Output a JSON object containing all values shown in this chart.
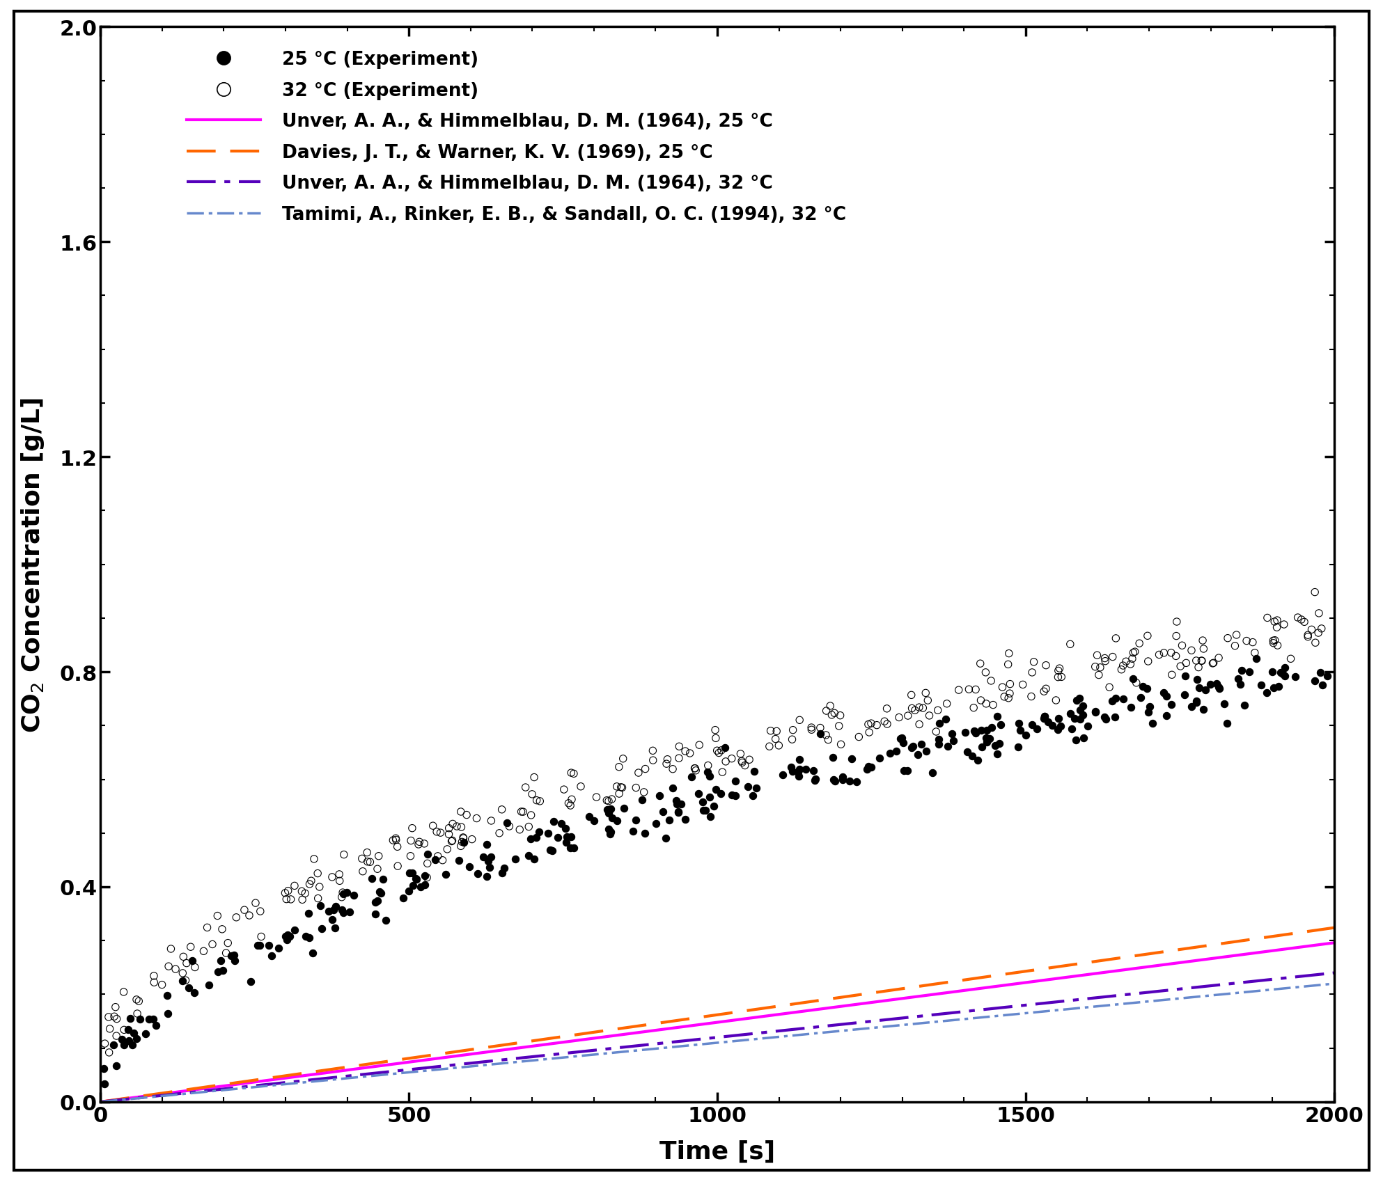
{
  "title": "",
  "xlabel": "Time [s]",
  "ylabel": "CO$_2$ Concentration [g/L]",
  "xlim": [
    0,
    2000
  ],
  "ylim": [
    0,
    2
  ],
  "yticks": [
    0,
    0.4,
    0.8,
    1.2,
    1.6,
    2.0
  ],
  "xticks": [
    0,
    500,
    1000,
    1500,
    2000
  ],
  "background_color": "#ffffff",
  "legend_entries": [
    "25 °C (Experiment)",
    "32 °C (Experiment)",
    "Unver, A. A., & Himmelblau, D. M. (1964), 25 °C",
    "Davies, J. T., & Warner, K. V. (1969), 25 °C",
    "Unver, A. A., & Himmelblau, D. M. (1964), 32 °C",
    "Tamimi, A., Rinker, E. B., & Sandall, O. C. (1994), 32 °C"
  ],
  "line1_color": "#ff00ff",
  "line1_lw": 3.0,
  "line1_slope": 0.000148,
  "line2_color": "#ff6600",
  "line2_lw": 3.0,
  "line2_slope": 0.000162,
  "line3_color": "#5500bb",
  "line3_lw": 3.0,
  "line3_slope": 0.00012,
  "line4_color": "#6688cc",
  "line4_lw": 2.5,
  "line4_slope": 0.00011,
  "scatter_ms": 55,
  "scatter_lw": 0.8,
  "font_size_tick": 22,
  "font_size_label": 26,
  "font_size_legend": 19
}
